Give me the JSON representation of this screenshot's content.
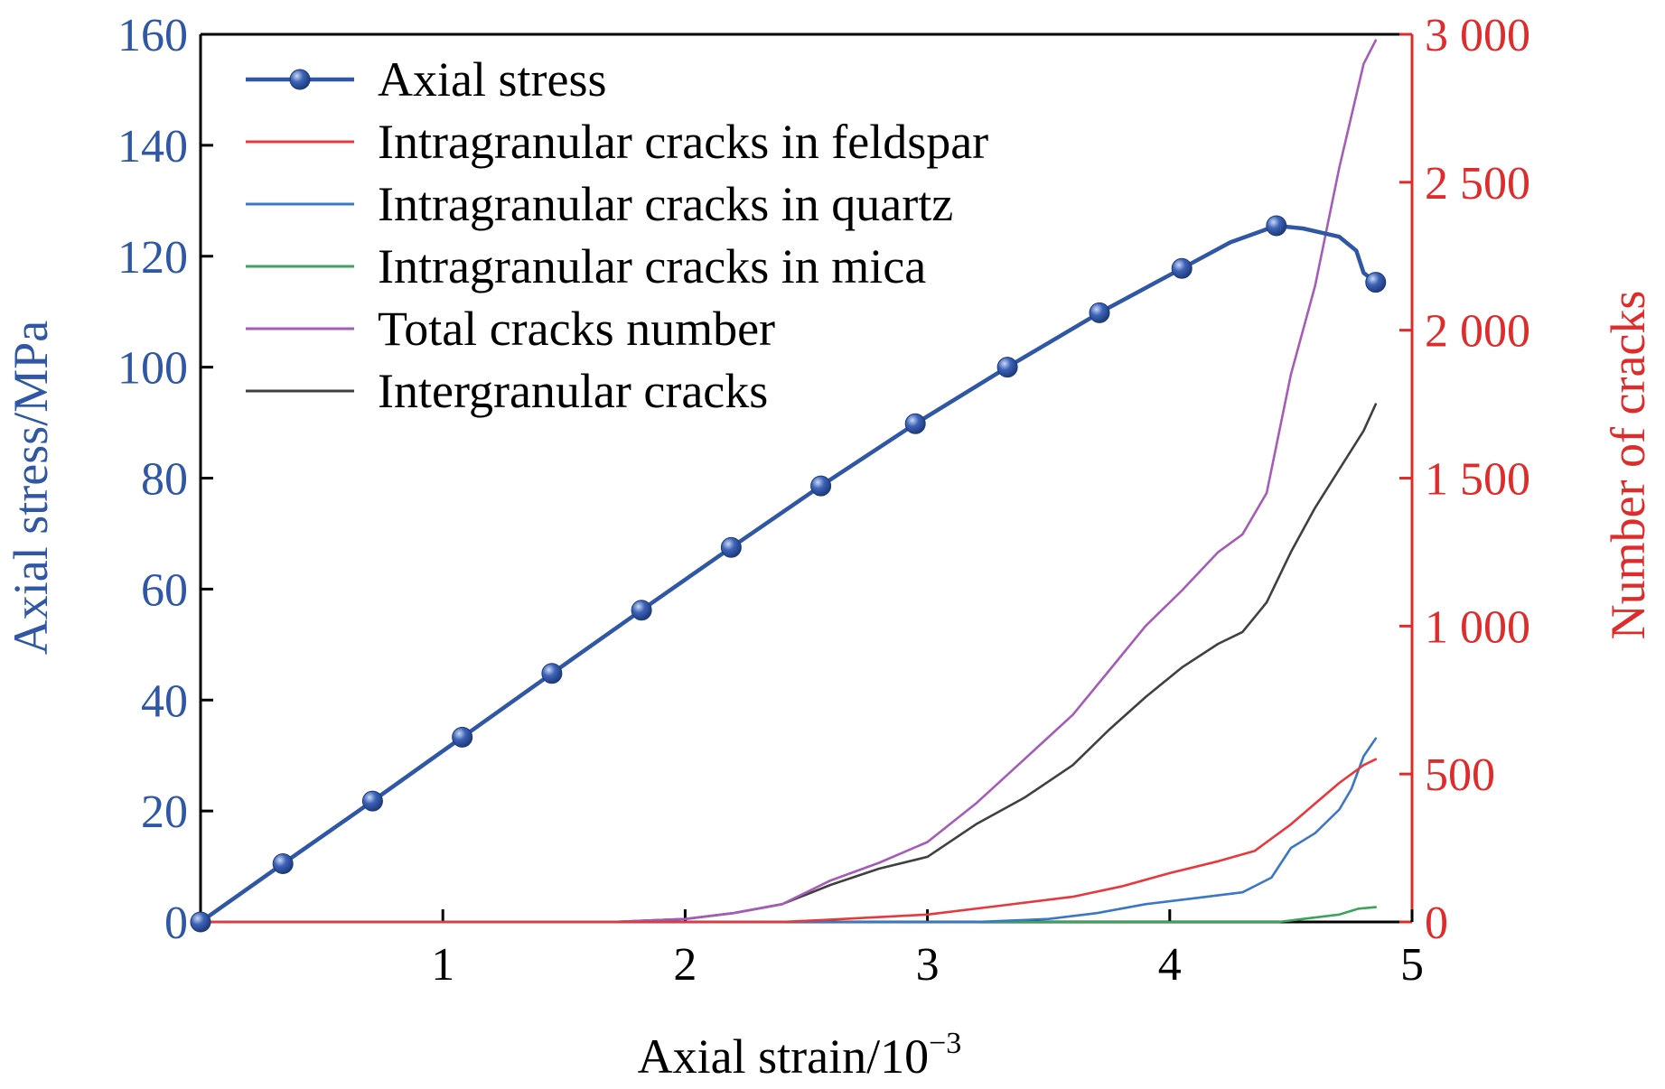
{
  "chart_data": {
    "type": "line",
    "xlabel": "Axial strain/10",
    "xlabel_sup": "−3",
    "ylabel_left": "Axial stress/MPa",
    "ylabel_right": "Number of cracks",
    "xlim": [
      0,
      5
    ],
    "ylim_left": [
      0,
      160
    ],
    "ylim_right": [
      0,
      3000
    ],
    "x_ticks": [
      1,
      2,
      3,
      4,
      5
    ],
    "x_tick_labels": [
      "1",
      "2",
      "3",
      "4",
      "5"
    ],
    "y_left_ticks": [
      0,
      20,
      40,
      60,
      80,
      100,
      120,
      140,
      160
    ],
    "y_left_tick_labels": [
      "0",
      "20",
      "40",
      "60",
      "80",
      "100",
      "120",
      "140",
      "160"
    ],
    "y_right_ticks": [
      0,
      500,
      1000,
      1500,
      2000,
      2500,
      3000
    ],
    "y_right_tick_labels": [
      "0",
      "500",
      "1 000",
      "1 500",
      "2 000",
      "2 500",
      "3 000"
    ],
    "grid": false,
    "legend_position": "top-left",
    "colors": {
      "left_axis": "#2f57a6",
      "right_axis": "#e02b2b",
      "axial_stress": "#2f57a6",
      "feldspar": "#e8383d",
      "quartz": "#3b78c4",
      "mica": "#3aa55a",
      "total": "#a55bb8",
      "intergranular": "#404040"
    },
    "series": [
      {
        "name": "Axial stress",
        "axis": "left",
        "key": "axial_stress",
        "markers": true,
        "x": [
          0,
          0.34,
          0.71,
          1.08,
          1.45,
          1.82,
          2.19,
          2.56,
          2.95,
          3.33,
          3.71,
          4.05,
          4.25,
          4.44,
          4.55,
          4.7,
          4.77,
          4.8,
          4.85
        ],
        "y": [
          0,
          10.5,
          21.8,
          33.3,
          44.8,
          56.2,
          67.5,
          78.6,
          89.8,
          100,
          109.8,
          117.8,
          122.5,
          125.5,
          125,
          123.5,
          121,
          117,
          115.3
        ],
        "marker_x": [
          0,
          0.34,
          0.71,
          1.08,
          1.45,
          1.82,
          2.19,
          2.56,
          2.95,
          3.33,
          3.71,
          4.05,
          4.44,
          4.85
        ],
        "marker_y": [
          0,
          10.5,
          21.8,
          33.3,
          44.8,
          56.2,
          67.5,
          78.6,
          89.8,
          100,
          109.8,
          117.8,
          125.5,
          115.3
        ]
      },
      {
        "name": "Intragranular cracks in feldspar",
        "axis": "right",
        "key": "feldspar",
        "x": [
          0,
          2.4,
          2.6,
          3.0,
          3.3,
          3.6,
          3.8,
          4.0,
          4.2,
          4.35,
          4.5,
          4.6,
          4.7,
          4.8,
          4.85
        ],
        "y": [
          0,
          0,
          8,
          25,
          55,
          85,
          120,
          165,
          205,
          240,
          330,
          400,
          470,
          530,
          550
        ]
      },
      {
        "name": "Intragranular cracks in quartz",
        "axis": "right",
        "key": "quartz",
        "x": [
          0,
          3.2,
          3.5,
          3.7,
          3.9,
          4.1,
          4.3,
          4.42,
          4.5,
          4.6,
          4.7,
          4.75,
          4.8,
          4.85
        ],
        "y": [
          0,
          0,
          10,
          30,
          60,
          80,
          100,
          150,
          250,
          300,
          380,
          450,
          560,
          620
        ]
      },
      {
        "name": "Intragranular cracks in mica",
        "axis": "right",
        "key": "mica",
        "x": [
          0,
          4.45,
          4.55,
          4.7,
          4.78,
          4.85
        ],
        "y": [
          0,
          0,
          10,
          25,
          45,
          50
        ]
      },
      {
        "name": "Total cracks number",
        "axis": "right",
        "key": "total",
        "x": [
          0,
          1.7,
          2.0,
          2.2,
          2.4,
          2.6,
          2.8,
          3.0,
          3.2,
          3.4,
          3.6,
          3.75,
          3.9,
          4.05,
          4.2,
          4.3,
          4.4,
          4.5,
          4.6,
          4.7,
          4.8,
          4.85
        ],
        "y": [
          0,
          0,
          10,
          30,
          60,
          140,
          200,
          270,
          400,
          550,
          700,
          850,
          1000,
          1120,
          1250,
          1310,
          1450,
          1850,
          2150,
          2550,
          2900,
          2980
        ]
      },
      {
        "name": "Intergranular cracks",
        "axis": "right",
        "key": "intergranular",
        "x": [
          0,
          1.7,
          2.0,
          2.2,
          2.4,
          2.6,
          2.8,
          3.0,
          3.2,
          3.4,
          3.6,
          3.75,
          3.9,
          4.05,
          4.2,
          4.3,
          4.4,
          4.5,
          4.6,
          4.7,
          4.8,
          4.85
        ],
        "y": [
          0,
          0,
          10,
          30,
          60,
          125,
          180,
          220,
          330,
          420,
          530,
          650,
          760,
          860,
          940,
          980,
          1080,
          1250,
          1400,
          1530,
          1660,
          1750
        ]
      }
    ]
  }
}
